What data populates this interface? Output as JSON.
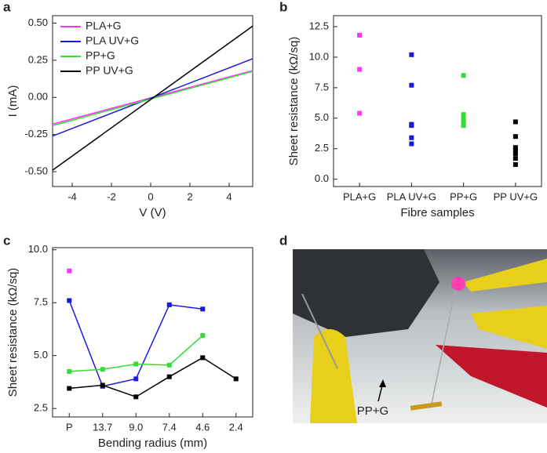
{
  "chart_data": [
    {
      "panel": "a",
      "type": "line",
      "x": [
        -5,
        5.2
      ],
      "xlim": [
        -5,
        5.2
      ],
      "xticks": [
        -4,
        -2,
        0,
        2,
        4
      ],
      "ylim": [
        -0.6,
        0.55
      ],
      "yticks": [
        {
          "value": -0.5,
          "label": "-0.50"
        },
        {
          "value": -0.25,
          "label": "-0.25"
        },
        {
          "value": 0,
          "label": "0.00"
        },
        {
          "value": 0.25,
          "label": "0.25"
        },
        {
          "value": 0.5,
          "label": "0.50"
        }
      ],
      "xlabel": "V (V)",
      "ylabel": "I (mA)",
      "legend": "upper left",
      "series": [
        {
          "name": "PLA+G",
          "color": "#ff33ff",
          "values": [
            -0.18,
            0.18
          ]
        },
        {
          "name": "PLA UV+G",
          "color": "#1a1ad6",
          "values": [
            -0.26,
            0.26
          ]
        },
        {
          "name": "PP+G",
          "color": "#33dd33",
          "values": [
            -0.19,
            0.175
          ]
        },
        {
          "name": "PP UV+G",
          "color": "#000000",
          "values": [
            -0.49,
            0.48
          ]
        }
      ]
    },
    {
      "panel": "b",
      "type": "strip",
      "categories": [
        "PLA+G",
        "PLA UV+G",
        "PP+G",
        "PP UV+G"
      ],
      "colors": [
        "#ff33ff",
        "#1a1ad6",
        "#33dd33",
        "#000000"
      ],
      "values": [
        [
          11.8,
          9.0,
          5.4
        ],
        [
          10.2,
          7.7,
          4.5,
          4.4,
          3.4,
          2.9
        ],
        [
          8.5,
          5.3,
          5.0,
          4.7,
          4.4
        ],
        [
          4.7,
          3.5,
          2.6,
          2.4,
          2.1,
          1.7,
          1.2
        ]
      ],
      "ylim": [
        -0.6,
        13.4
      ],
      "yticks": [
        {
          "value": 0,
          "label": "0.0"
        },
        {
          "value": 2.5,
          "label": "2.5"
        },
        {
          "value": 5,
          "label": "5.0"
        },
        {
          "value": 7.5,
          "label": "7.5"
        },
        {
          "value": 10,
          "label": "10.0"
        },
        {
          "value": 12.5,
          "label": "12.5"
        }
      ],
      "xlabel": "Fibre samples",
      "ylabel": "Sheet resistance (kΩ/sq)"
    },
    {
      "panel": "c",
      "type": "line",
      "markers": true,
      "categories": [
        "P",
        "13.7",
        "9.0",
        "7.4",
        "4.6",
        "2.4"
      ],
      "ylim": [
        2.1,
        10.1
      ],
      "yticks": [
        {
          "value": 2.5,
          "label": "2.5"
        },
        {
          "value": 5,
          "label": "5.0"
        },
        {
          "value": 7.5,
          "label": "7.5"
        },
        {
          "value": 10,
          "label": "10.0"
        }
      ],
      "xlabel": "Bending radius (mm)",
      "ylabel": "Sheet resistance (kΩ/sq)",
      "series": [
        {
          "name": "PLA+G",
          "color": "#ff33ff",
          "values": [
            9.0,
            null,
            null,
            null,
            null,
            null
          ]
        },
        {
          "name": "PLA UV+G",
          "color": "#1a1ad6",
          "values": [
            7.6,
            3.55,
            3.9,
            7.4,
            7.2,
            null
          ]
        },
        {
          "name": "PP+G",
          "color": "#33dd33",
          "values": [
            4.25,
            4.35,
            4.6,
            4.55,
            5.95,
            null
          ]
        },
        {
          "name": "PP UV+G",
          "color": "#000000",
          "values": [
            3.45,
            3.6,
            3.05,
            4.0,
            4.9,
            3.9
          ]
        }
      ]
    }
  ],
  "photo": {
    "panel": "d",
    "annotation": "PP+G"
  }
}
